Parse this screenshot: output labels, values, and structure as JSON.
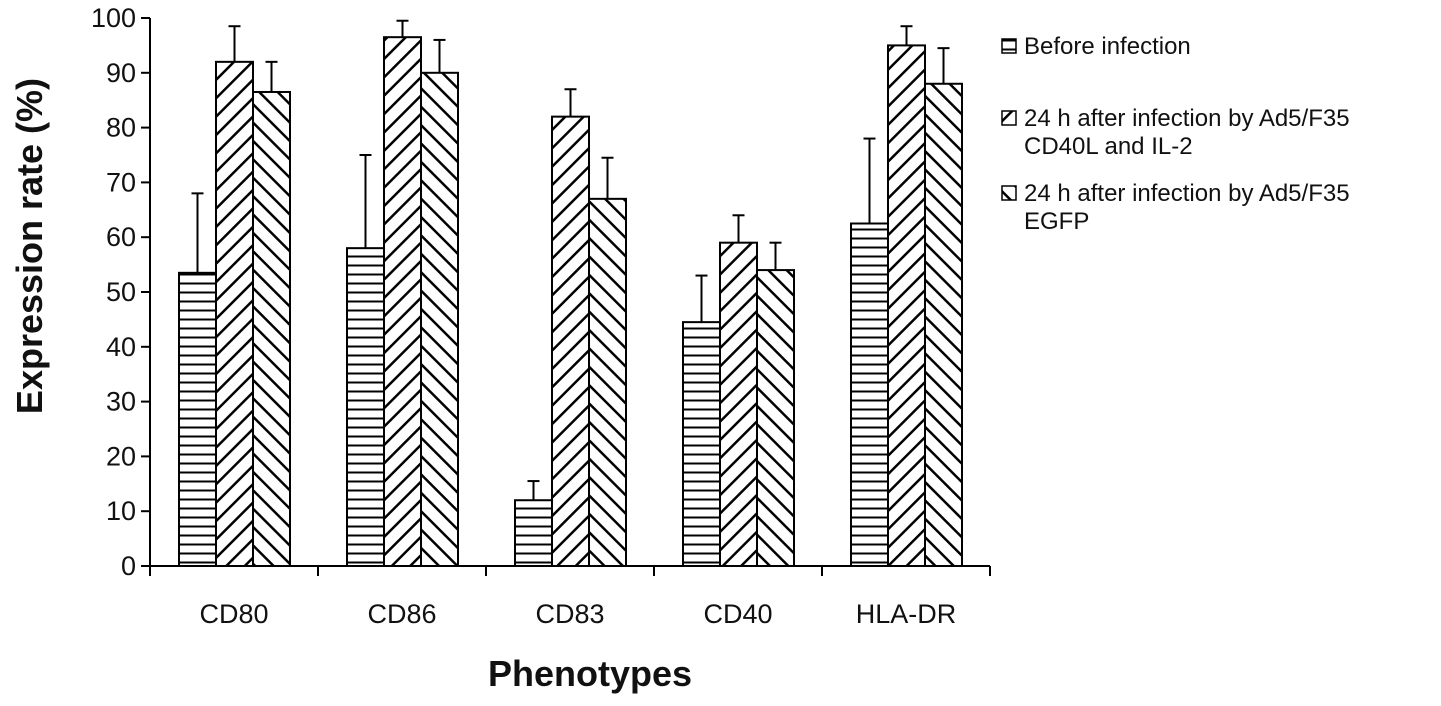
{
  "chart_data": {
    "type": "bar",
    "title": "",
    "xlabel": "Phenotypes",
    "ylabel": "Expression rate (%)",
    "ylim": [
      0,
      100
    ],
    "yticks": [
      0,
      10,
      20,
      30,
      40,
      50,
      60,
      70,
      80,
      90,
      100
    ],
    "grid": false,
    "legend_position": "right",
    "categories": [
      "CD80",
      "CD86",
      "CD83",
      "CD40",
      "HLA-DR"
    ],
    "series": [
      {
        "name": "Before infection",
        "legend_lines": [
          "Before infection"
        ],
        "pattern": "horizontal",
        "values": [
          53.5,
          58,
          12,
          44.5,
          62.5
        ],
        "errors": [
          14.5,
          17,
          3.5,
          8.5,
          15.5
        ]
      },
      {
        "name": "24 h after infection by Ad5/F35 CD40L and IL-2",
        "legend_lines": [
          "24 h after infection by Ad5/F35",
          "CD40L and IL-2"
        ],
        "pattern": "forward-diagonal",
        "values": [
          92,
          96.5,
          82,
          59,
          95
        ],
        "errors": [
          6.5,
          3,
          5,
          5,
          3.5
        ]
      },
      {
        "name": "24 h after infection by Ad5/F35 EGFP",
        "legend_lines": [
          "24 h after infection by Ad5/F35",
          "EGFP"
        ],
        "pattern": "back-diagonal",
        "values": [
          86.5,
          90,
          67,
          54,
          88
        ],
        "errors": [
          5.5,
          6,
          7.5,
          5,
          6.5
        ]
      }
    ],
    "colors": {
      "bar_fill": "#ffffff",
      "stroke": "#000000",
      "text": "#111111"
    }
  }
}
